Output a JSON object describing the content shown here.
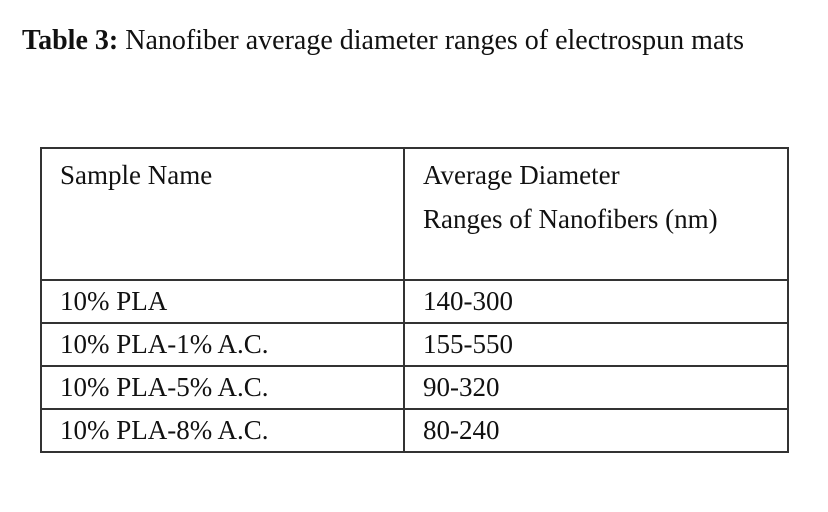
{
  "caption": {
    "label": "Table 3:",
    "text": "Nanofiber average diameter ranges of electrospun mats"
  },
  "table": {
    "header": [
      [
        "Sample Name"
      ],
      [
        "Average Diameter",
        "Ranges of Nanofibers (nm)"
      ]
    ],
    "rows": [
      [
        "10% PLA",
        "140-300"
      ],
      [
        "10% PLA-1% A.C.",
        "155-550"
      ],
      [
        "10% PLA-5% A.C.",
        "90-320"
      ],
      [
        "10% PLA-8% A.C.",
        "80-240"
      ]
    ]
  }
}
